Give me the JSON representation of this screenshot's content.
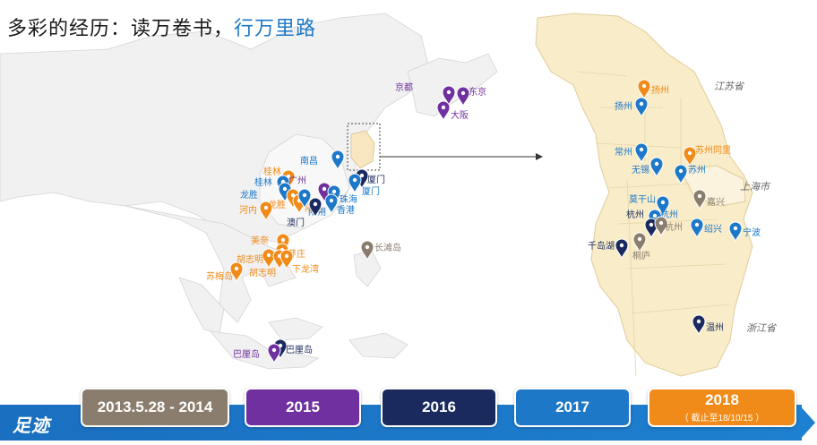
{
  "title": {
    "main": "多彩的经历：读万卷书，",
    "accent": "行万里路"
  },
  "colors": {
    "p2014": "#8b7d6d",
    "p2015": "#7030a0",
    "p2016": "#1a2a5e",
    "p2017": "#1e78c8",
    "p2018": "#f08a18"
  },
  "region_labels": {
    "jiangsu": "江苏省",
    "shanghai": "上海市",
    "zhejiang": "浙江省"
  },
  "footer": {
    "label": "足迹",
    "periods": [
      {
        "label": "2013.5.28 - 2014",
        "sub": "",
        "color_key": "p2014"
      },
      {
        "label": "2015",
        "sub": "",
        "color_key": "p2015"
      },
      {
        "label": "2016",
        "sub": "",
        "color_key": "p2016"
      },
      {
        "label": "2017",
        "sub": "",
        "color_key": "p2017"
      },
      {
        "label": "2018",
        "sub": "（ 截止至18/10/15 ）",
        "color_key": "p2018"
      }
    ]
  },
  "left_pins": [
    {
      "name": "京都",
      "period": "p2015"
    },
    {
      "name": "东京",
      "period": "p2015"
    },
    {
      "name": "大阪",
      "period": "p2015"
    },
    {
      "name": "南昌",
      "period": "p2017"
    },
    {
      "name": "桂林",
      "period": "p2018"
    },
    {
      "name": "桂林",
      "period": "p2017"
    },
    {
      "name": "广州",
      "period": "p2015"
    },
    {
      "name": "厦门",
      "period": "p2016"
    },
    {
      "name": "厦门",
      "period": "p2017"
    },
    {
      "name": "珠海",
      "period": "p2017"
    },
    {
      "name": "龙胜",
      "period": "p2017"
    },
    {
      "name": "龙胜",
      "period": "p2018"
    },
    {
      "name": "阳朔",
      "period": "p2018"
    },
    {
      "name": "阳朔",
      "period": "p2017"
    },
    {
      "name": "香港",
      "period": "p2017"
    },
    {
      "name": "河内",
      "period": "p2018"
    },
    {
      "name": "澳门",
      "period": "p2016"
    },
    {
      "name": "长滩岛",
      "period": "p2014"
    },
    {
      "name": "美奈",
      "period": "p2018"
    },
    {
      "name": "芽庄",
      "period": "p2018"
    },
    {
      "name": "胡志明",
      "period": "p2018"
    },
    {
      "name": "胡志明",
      "period": "p2018"
    },
    {
      "name": "下龙湾",
      "period": "p2018"
    },
    {
      "name": "苏梅岛",
      "period": "p2018"
    },
    {
      "name": "巴厘岛",
      "period": "p2016"
    },
    {
      "name": "巴厘岛",
      "period": "p2015"
    }
  ],
  "right_pins": [
    {
      "name": "扬州",
      "period": "p2018"
    },
    {
      "name": "扬州",
      "period": "p2017"
    },
    {
      "name": "常州",
      "period": "p2017"
    },
    {
      "name": "苏州同里",
      "period": "p2018"
    },
    {
      "name": "无锡",
      "period": "p2017"
    },
    {
      "name": "苏州",
      "period": "p2017"
    },
    {
      "name": "莫干山",
      "period": "p2017"
    },
    {
      "name": "嘉兴",
      "period": "p2014"
    },
    {
      "name": "杭州",
      "period": "p2017"
    },
    {
      "name": "杭州",
      "period": "p2016"
    },
    {
      "name": "杭州",
      "period": "p2014"
    },
    {
      "name": "绍兴",
      "period": "p2017"
    },
    {
      "name": "宁波",
      "period": "p2017"
    },
    {
      "name": "千岛湖",
      "period": "p2016"
    },
    {
      "name": "桐庐",
      "period": "p2014"
    },
    {
      "name": "温州",
      "period": "p2016"
    }
  ]
}
